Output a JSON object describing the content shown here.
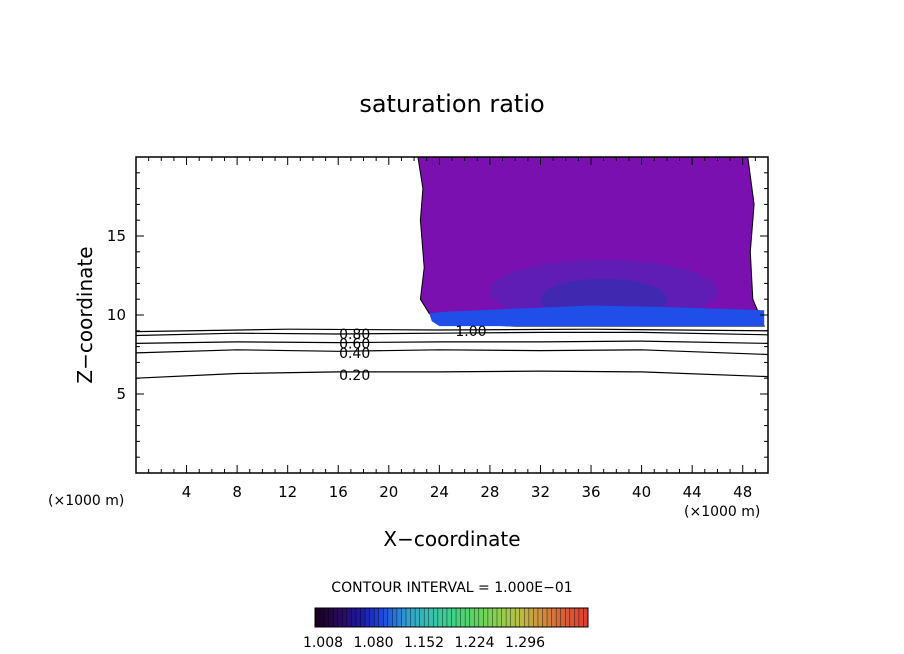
{
  "chart_data": {
    "type": "heatmap",
    "title": "saturation ratio",
    "xlabel": "X−coordinate",
    "ylabel": "Z−coordinate",
    "x_unit_left": "(×1000 m)",
    "x_unit_right": "(×1000 m)",
    "xlim": [
      0,
      50
    ],
    "ylim": [
      0,
      20
    ],
    "xticks": [
      4,
      8,
      12,
      16,
      20,
      24,
      28,
      32,
      36,
      40,
      44,
      48
    ],
    "yticks": [
      5,
      10,
      15
    ],
    "contour_interval_text": "CONTOUR INTERVAL = 1.000E−01",
    "contours": [
      {
        "label": "0.20",
        "level": 0.2,
        "label_x": 17.3,
        "label_z": 6.2,
        "points": [
          [
            0,
            6.0
          ],
          [
            8,
            6.3
          ],
          [
            16,
            6.4
          ],
          [
            24,
            6.4
          ],
          [
            32,
            6.45
          ],
          [
            40,
            6.4
          ],
          [
            50,
            6.1
          ]
        ]
      },
      {
        "label": "0.40",
        "level": 0.4,
        "label_x": 17.3,
        "label_z": 7.6,
        "points": [
          [
            0,
            7.6
          ],
          [
            8,
            7.8
          ],
          [
            16,
            7.7
          ],
          [
            24,
            7.8
          ],
          [
            32,
            7.75
          ],
          [
            40,
            7.8
          ],
          [
            50,
            7.5
          ]
        ]
      },
      {
        "label": "0.60",
        "level": 0.6,
        "label_x": 17.3,
        "label_z": 8.2,
        "points": [
          [
            0,
            8.2
          ],
          [
            8,
            8.3
          ],
          [
            16,
            8.25
          ],
          [
            24,
            8.3
          ],
          [
            32,
            8.3
          ],
          [
            40,
            8.35
          ],
          [
            50,
            8.2
          ]
        ]
      },
      {
        "label": "0.80",
        "level": 0.8,
        "label_x": 17.3,
        "label_z": 8.8,
        "points": [
          [
            0,
            8.7
          ],
          [
            8,
            8.85
          ],
          [
            16,
            8.8
          ],
          [
            24,
            8.85
          ],
          [
            32,
            8.9
          ],
          [
            40,
            8.9
          ],
          [
            50,
            8.75
          ]
        ]
      },
      {
        "label": "1.00",
        "level": 1.0,
        "label_x": 26.5,
        "label_z": 9.0,
        "points": [
          [
            0,
            8.95
          ],
          [
            12,
            9.1
          ],
          [
            24,
            9.05
          ],
          [
            36,
            9.1
          ],
          [
            50,
            9.0
          ]
        ]
      }
    ],
    "colorbar": {
      "tick_labels": [
        "1.008",
        "1.080",
        "1.152",
        "1.224",
        "1.296"
      ],
      "colors": [
        "#1a0022",
        "#2a0a5e",
        "#1a1aa8",
        "#1f4fe0",
        "#2e9fd0",
        "#38c0b0",
        "#3fd08a",
        "#5ad460",
        "#8ad050",
        "#b8c046",
        "#d0903e",
        "#d86038",
        "#e04030"
      ]
    },
    "field_colors": {
      "upper": "#7a10b0",
      "middle": "#5a20b8",
      "core": "#3a2cb0",
      "base": "#1f4fe8"
    }
  }
}
